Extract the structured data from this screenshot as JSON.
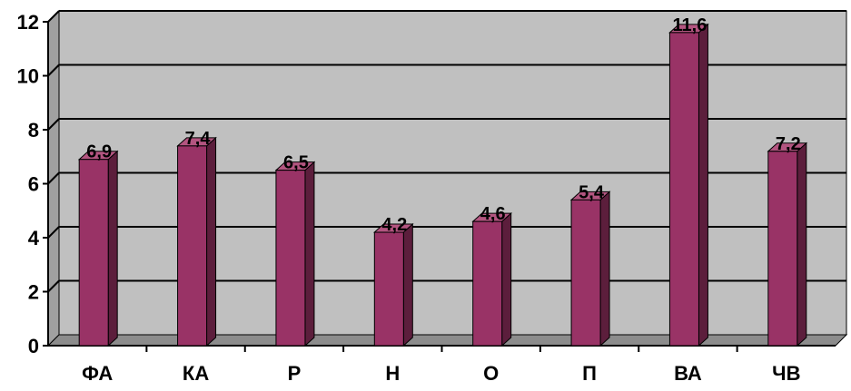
{
  "chart_data": {
    "type": "bar",
    "categories": [
      "ФА",
      "КА",
      "Р",
      "Н",
      "О",
      "П",
      "ВА",
      "ЧВ"
    ],
    "values": [
      6.9,
      7.4,
      6.5,
      4.2,
      4.6,
      5.4,
      11.6,
      7.2
    ],
    "data_labels": [
      "6,9",
      "7,4",
      "6,5",
      "4,2",
      "4,6",
      "5,4",
      "11,6",
      "7,2"
    ],
    "y_ticks": [
      "0",
      "2",
      "4",
      "6",
      "8",
      "10",
      "12"
    ],
    "ylim": [
      0,
      12
    ],
    "title": "",
    "xlabel": "",
    "ylabel": "",
    "grid": true,
    "legend": "none",
    "style": "3d-column",
    "colors": {
      "bar_front": "#993366",
      "bar_top": "#B35580",
      "bar_side": "#5C1E3C",
      "plot_background": "#C0C0C0",
      "wall_side": "#A0A0A0",
      "floor": "#8C8C8C",
      "gridline": "#000000"
    }
  }
}
